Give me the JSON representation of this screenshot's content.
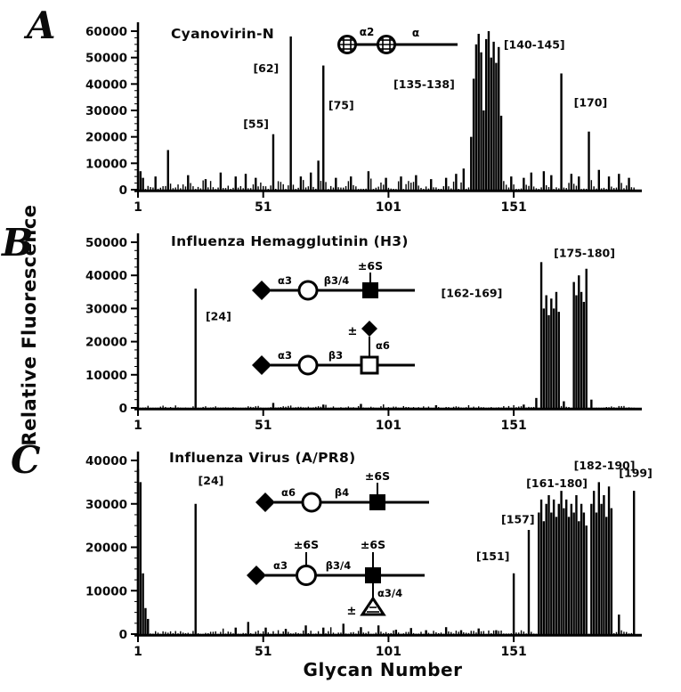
{
  "figure": {
    "ylabel": "Relative Fluorescence",
    "xlabel": "Glycan Number"
  },
  "chart_data": [
    {
      "type": "bar",
      "panel": "A",
      "title": "Cyanovirin-N",
      "xlim": [
        1,
        200
      ],
      "xticks": [
        1,
        51,
        101,
        151
      ],
      "ylim": [
        0,
        60000
      ],
      "ytick_interval": 10000,
      "grid": false,
      "bar_color": "#000000",
      "peaks": [
        [
          2,
          7000
        ],
        [
          3,
          4500
        ],
        [
          8,
          5000
        ],
        [
          13,
          15000
        ],
        [
          21,
          5500
        ],
        [
          28,
          4000
        ],
        [
          34,
          6500
        ],
        [
          40,
          5000
        ],
        [
          44,
          6000
        ],
        [
          48,
          4500
        ],
        [
          55,
          21000
        ],
        [
          62,
          58000
        ],
        [
          66,
          5000
        ],
        [
          70,
          6500
        ],
        [
          73,
          11000
        ],
        [
          75,
          47000
        ],
        [
          80,
          4500
        ],
        [
          86,
          5000
        ],
        [
          93,
          7000
        ],
        [
          100,
          4500
        ],
        [
          106,
          5000
        ],
        [
          112,
          5500
        ],
        [
          118,
          4000
        ],
        [
          124,
          4500
        ],
        [
          128,
          6000
        ],
        [
          131,
          8000
        ],
        [
          134,
          20000
        ],
        [
          135,
          42000
        ],
        [
          136,
          55000
        ],
        [
          137,
          59000
        ],
        [
          138,
          52000
        ],
        [
          139,
          30000
        ],
        [
          140,
          57000
        ],
        [
          141,
          60000
        ],
        [
          142,
          50000
        ],
        [
          143,
          56000
        ],
        [
          144,
          48000
        ],
        [
          145,
          54000
        ],
        [
          146,
          28000
        ],
        [
          150,
          5000
        ],
        [
          155,
          4500
        ],
        [
          158,
          6500
        ],
        [
          163,
          7000
        ],
        [
          166,
          5500
        ],
        [
          170,
          44000
        ],
        [
          174,
          6000
        ],
        [
          177,
          5000
        ],
        [
          181,
          22000
        ],
        [
          185,
          7500
        ],
        [
          189,
          5000
        ],
        [
          193,
          6000
        ],
        [
          197,
          4500
        ]
      ],
      "noise": {
        "amplitude": 3400,
        "seed": 11,
        "description": "dense baseline noise across glycans 1-200"
      },
      "annotations": [
        {
          "x": 43,
          "y": 23500,
          "text": "[55]"
        },
        {
          "x": 47,
          "y": 44500,
          "text": "[62]"
        },
        {
          "x": 77,
          "y": 30500,
          "text": "[75]"
        },
        {
          "x": 103,
          "y": 38500,
          "text": "[135-138]"
        },
        {
          "x": 147,
          "y": 53500,
          "text": "[140-145]"
        },
        {
          "x": 175,
          "y": 31500,
          "text": "[170]"
        }
      ],
      "structures": [
        {
          "name": "Man-alpha2-Man disaccharide",
          "symbols": [
            "hatched-circle",
            "hatched-circle"
          ],
          "labels": [
            "α2",
            "α"
          ]
        }
      ]
    },
    {
      "type": "bar",
      "panel": "B",
      "title": "Influenza Hemagglutinin (H3)",
      "xlim": [
        1,
        200
      ],
      "xticks": [
        1,
        51,
        101,
        151
      ],
      "ylim": [
        0,
        50000
      ],
      "ytick_interval": 10000,
      "grid": false,
      "bar_color": "#000000",
      "peaks": [
        [
          24,
          36000
        ],
        [
          55,
          1500
        ],
        [
          75,
          1000
        ],
        [
          90,
          1200
        ],
        [
          120,
          800
        ],
        [
          155,
          1000
        ],
        [
          160,
          3000
        ],
        [
          162,
          44000
        ],
        [
          163,
          30000
        ],
        [
          164,
          34000
        ],
        [
          165,
          28000
        ],
        [
          166,
          33000
        ],
        [
          167,
          30000
        ],
        [
          168,
          35000
        ],
        [
          169,
          29000
        ],
        [
          171,
          2000
        ],
        [
          175,
          38000
        ],
        [
          176,
          34000
        ],
        [
          177,
          40000
        ],
        [
          178,
          35000
        ],
        [
          179,
          32000
        ],
        [
          180,
          42000
        ],
        [
          182,
          2500
        ]
      ],
      "noise": {
        "amplitude": 600,
        "seed": 22,
        "description": "very low baseline noise"
      },
      "annotations": [
        {
          "x": 28,
          "y": 26500,
          "text": "[24]"
        },
        {
          "x": 122,
          "y": 33500,
          "text": "[162-169]"
        },
        {
          "x": 167,
          "y": 45500,
          "text": "[175-180]"
        }
      ],
      "structures": [
        {
          "name": "Neu5Ac-a3-Gal-b3/4-GlcNAc-6S",
          "symbols": [
            "filled-diamond",
            "open-circle",
            "filled-square"
          ],
          "labels": [
            "α3",
            "β3/4",
            "±6S"
          ]
        },
        {
          "name": "Neu5Ac-a3-Gal-b3-GalNAc with optional a6 Neu5Ac branch",
          "symbols": [
            "filled-diamond",
            "open-circle",
            "open-square",
            "filled-diamond"
          ],
          "labels": [
            "α3",
            "β3",
            "±",
            "α6"
          ]
        }
      ]
    },
    {
      "type": "bar",
      "panel": "C",
      "title": "Influenza Virus (A/PR8)",
      "xlim": [
        1,
        200
      ],
      "xticks": [
        1,
        51,
        101,
        151
      ],
      "ylim": [
        0,
        40000
      ],
      "ytick_interval": 10000,
      "grid": false,
      "bar_color": "#000000",
      "peaks": [
        [
          1,
          38000
        ],
        [
          2,
          35000
        ],
        [
          3,
          14000
        ],
        [
          4,
          6000
        ],
        [
          5,
          3500
        ],
        [
          24,
          30000
        ],
        [
          40,
          1500
        ],
        [
          45,
          2800
        ],
        [
          52,
          1500
        ],
        [
          60,
          1200
        ],
        [
          68,
          2000
        ],
        [
          75,
          1500
        ],
        [
          83,
          2400
        ],
        [
          90,
          1600
        ],
        [
          97,
          2000
        ],
        [
          104,
          1000
        ],
        [
          110,
          1400
        ],
        [
          116,
          900
        ],
        [
          124,
          1600
        ],
        [
          130,
          900
        ],
        [
          137,
          1300
        ],
        [
          144,
          900
        ],
        [
          151,
          14000
        ],
        [
          157,
          24000
        ],
        [
          161,
          28000
        ],
        [
          162,
          31000
        ],
        [
          163,
          26000
        ],
        [
          164,
          30000
        ],
        [
          165,
          32000
        ],
        [
          166,
          28000
        ],
        [
          167,
          31000
        ],
        [
          168,
          27000
        ],
        [
          169,
          30000
        ],
        [
          170,
          33000
        ],
        [
          171,
          29000
        ],
        [
          172,
          31000
        ],
        [
          173,
          27000
        ],
        [
          174,
          30000
        ],
        [
          175,
          28000
        ],
        [
          176,
          32000
        ],
        [
          177,
          26000
        ],
        [
          178,
          30000
        ],
        [
          179,
          28000
        ],
        [
          180,
          25000
        ],
        [
          182,
          30000
        ],
        [
          183,
          33000
        ],
        [
          184,
          28000
        ],
        [
          185,
          35000
        ],
        [
          186,
          30000
        ],
        [
          187,
          32000
        ],
        [
          188,
          27000
        ],
        [
          189,
          34000
        ],
        [
          190,
          29000
        ],
        [
          193,
          4500
        ],
        [
          199,
          33000
        ]
      ],
      "noise": {
        "amplitude": 900,
        "seed": 33,
        "description": "low baseline noise"
      },
      "annotations": [
        {
          "x": 25,
          "y": 34500,
          "text": "[24]"
        },
        {
          "x": 136,
          "y": 17000,
          "text": "[151]"
        },
        {
          "x": 146,
          "y": 25500,
          "text": "[157]"
        },
        {
          "x": 156,
          "y": 33800,
          "text": "[161-180]"
        },
        {
          "x": 175,
          "y": 38000,
          "text": "[182-190]"
        },
        {
          "x": 193,
          "y": 36200,
          "text": "[199]"
        }
      ],
      "structures": [
        {
          "name": "Neu5Ac-a6-Gal-b4-GlcNAc-6S",
          "symbols": [
            "filled-diamond",
            "open-circle",
            "filled-square"
          ],
          "labels": [
            "α6",
            "β4",
            "±6S"
          ]
        },
        {
          "name": "Neu5Ac-a3-Gal(6S)-b3/4-GlcNAc(6S) with optional a3/4 Fuc branch",
          "symbols": [
            "filled-diamond",
            "open-circle",
            "filled-square",
            "open-triangle"
          ],
          "labels": [
            "α3",
            "±6S",
            "β3/4",
            "±6S",
            "α3/4",
            "±"
          ]
        }
      ]
    }
  ]
}
